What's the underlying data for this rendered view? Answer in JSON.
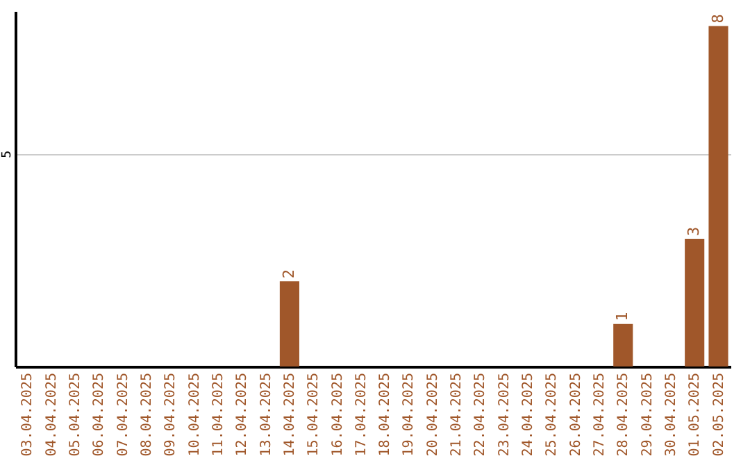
{
  "chart_data": {
    "type": "bar",
    "categories": [
      "03.04.2025",
      "04.04.2025",
      "05.04.2025",
      "06.04.2025",
      "07.04.2025",
      "08.04.2025",
      "09.04.2025",
      "10.04.2025",
      "11.04.2025",
      "12.04.2025",
      "13.04.2025",
      "14.04.2025",
      "15.04.2025",
      "16.04.2025",
      "17.04.2025",
      "18.04.2025",
      "19.04.2025",
      "20.04.2025",
      "21.04.2025",
      "22.04.2025",
      "23.04.2025",
      "24.04.2025",
      "25.04.2025",
      "26.04.2025",
      "27.04.2025",
      "28.04.2025",
      "29.04.2025",
      "30.04.2025",
      "01.05.2025",
      "02.05.2025"
    ],
    "values": [
      0,
      0,
      0,
      0,
      0,
      0,
      0,
      0,
      0,
      0,
      0,
      2,
      0,
      0,
      0,
      0,
      0,
      0,
      0,
      0,
      0,
      0,
      0,
      0,
      0,
      1,
      0,
      0,
      3,
      8
    ],
    "value_labels": [
      null,
      null,
      null,
      null,
      null,
      null,
      null,
      null,
      null,
      null,
      null,
      "2",
      null,
      null,
      null,
      null,
      null,
      null,
      null,
      null,
      null,
      null,
      null,
      null,
      null,
      "1",
      null,
      null,
      "3",
      "8"
    ],
    "color": "#a0572a",
    "ylim": [
      0,
      8.35
    ],
    "yticks": [
      5
    ],
    "grid": "y"
  }
}
